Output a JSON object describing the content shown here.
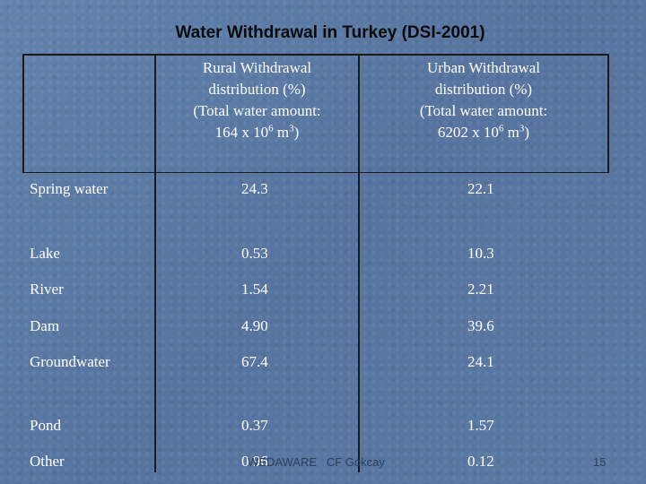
{
  "title": "Water Withdrawal in Turkey (DSI-2001)",
  "header": {
    "rural": {
      "line1": "Rural Withdrawal",
      "line2": "distribution (%)",
      "line3": "(Total water amount:",
      "line4_pre": "164 x 10",
      "exp1": "6",
      "line4_mid": " m",
      "exp2": "3",
      "line4_post": ")"
    },
    "urban": {
      "line1": "Urban Withdrawal",
      "line2": "distribution (%)",
      "line3": "(Total water amount:",
      "line4_pre": "6202 x 10",
      "exp1": "6",
      "line4_mid": " m",
      "exp2": "3",
      "line4_post": ")"
    }
  },
  "rows": [
    {
      "source": "Spring water",
      "rural": "24.3",
      "urban": "22.1"
    },
    {
      "source": "Lake",
      "rural": "0.53",
      "urban": "10.3"
    },
    {
      "source": "River",
      "rural": "1.54",
      "urban": "2.21"
    },
    {
      "source": "Dam",
      "rural": "4.90",
      "urban": "39.6"
    },
    {
      "source": "Groundwater",
      "rural": "67.4",
      "urban": "24.1"
    },
    {
      "source": "Pond",
      "rural": "0.37",
      "urban": "1.57"
    },
    {
      "source": "Other",
      "rural": "0.96",
      "urban": "0.12"
    }
  ],
  "footer": {
    "text": "WEDAWARE   CF Gokcay",
    "page": "15"
  }
}
